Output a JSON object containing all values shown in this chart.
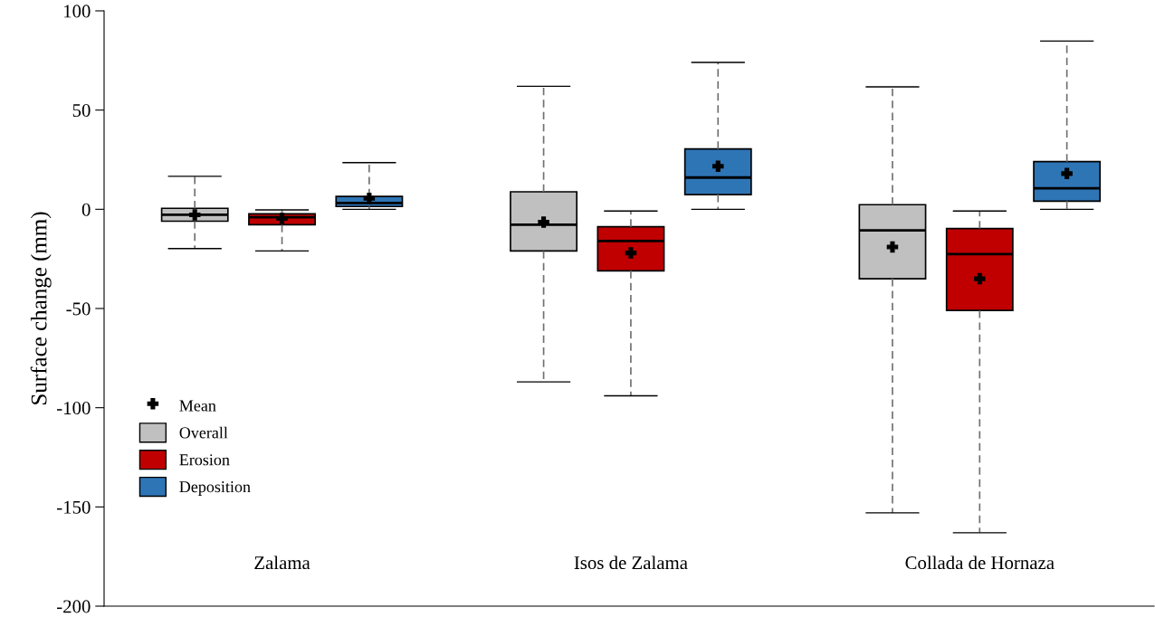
{
  "chart_data": {
    "type": "box",
    "ylabel": "Surface change (mm)",
    "categories": [
      "Zalama",
      "Isos de Zalama",
      "Collada de Hornaza"
    ],
    "ylim": [
      -200,
      100
    ],
    "yticks": [
      -200,
      -150,
      -100,
      -50,
      0,
      50,
      100
    ],
    "grid": false,
    "legend": "bottom left",
    "marker": "cross",
    "annotations": [
      "Mean"
    ],
    "series": [
      {
        "name": "Overall",
        "color": "#c0c0c0",
        "boxes": [
          {
            "low": -19.8,
            "q1": -6,
            "median": -2.8,
            "q3": 0.5,
            "high": 16.6,
            "mean": -2.8
          },
          {
            "low": -87,
            "q1": -21,
            "median": -7.8,
            "q3": 8.8,
            "high": 62,
            "mean": -6.5
          },
          {
            "low": -153,
            "q1": -35,
            "median": -10.6,
            "q3": 2.3,
            "high": 61.7,
            "mean": -19
          }
        ]
      },
      {
        "name": "Erosion",
        "color": "#c00000",
        "boxes": [
          {
            "low": -21,
            "q1": -7.8,
            "median": -4,
            "q3": -2.3,
            "high": -0.3,
            "mean": -4.6
          },
          {
            "low": -94,
            "q1": -31,
            "median": -16,
            "q3": -8.8,
            "high": -0.9,
            "mean": -22
          },
          {
            "low": -163,
            "q1": -51,
            "median": -22.6,
            "q3": -9.7,
            "high": -0.9,
            "mean": -35
          }
        ]
      },
      {
        "name": "Deposition",
        "color": "#2e75b6",
        "boxes": [
          {
            "low": 0,
            "q1": 1.4,
            "median": 3.2,
            "q3": 6.5,
            "high": 23.5,
            "mean": 5.5
          },
          {
            "low": 0,
            "q1": 7.4,
            "median": 16,
            "q3": 30.4,
            "high": 74,
            "mean": 21.7
          },
          {
            "low": 0,
            "q1": 4.1,
            "median": 10.6,
            "q3": 24,
            "high": 84.8,
            "mean": 18
          }
        ]
      }
    ]
  }
}
